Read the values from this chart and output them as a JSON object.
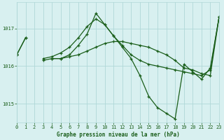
{
  "background_color": "#d8f0f0",
  "grid_color": "#b0d8d8",
  "line_color": "#1a5e1a",
  "marker_color": "#1a5e1a",
  "xlabel": "Graphe pression niveau de la mer (hPa)",
  "xlabel_color": "#1a5e1a",
  "tick_color": "#1a5e1a",
  "ylim": [
    1014.5,
    1017.7
  ],
  "yticks": [
    1015,
    1016,
    1017
  ],
  "xlim": [
    0,
    23
  ],
  "xticks": [
    0,
    1,
    2,
    3,
    4,
    5,
    6,
    7,
    8,
    9,
    10,
    11,
    12,
    13,
    14,
    15,
    16,
    17,
    18,
    19,
    20,
    21,
    22,
    23
  ],
  "series": [
    [
      1016.3,
      1016.75,
      null,
      null,
      null,
      null,
      null,
      null,
      null,
      null,
      null,
      null,
      null,
      null,
      null,
      null,
      null,
      null,
      null,
      null,
      null,
      null,
      null,
      null
    ],
    [
      1016.3,
      null,
      null,
      1016.2,
      1016.25,
      1016.35,
      1016.5,
      1016.75,
      1017.05,
      1017.25,
      1017.1,
      1016.8,
      1016.55,
      1016.3,
      1016.15,
      1016.05,
      1016.0,
      1015.95,
      1015.9,
      1015.85,
      1015.8,
      1015.75,
      1015.9,
      1017.3
    ],
    [
      1016.3,
      1016.75,
      null,
      null,
      1016.2,
      1016.2,
      1016.3,
      1016.55,
      1016.85,
      1017.4,
      1017.1,
      1016.8,
      1016.5,
      1016.2,
      1015.75,
      1015.2,
      1014.9,
      1014.75,
      1014.6,
      1016.05,
      1015.85,
      1015.65,
      1015.95,
      1017.3
    ],
    [
      1016.3,
      null,
      null,
      1016.15,
      1016.2,
      1016.2,
      1016.25,
      1016.3,
      1016.4,
      1016.5,
      1016.6,
      1016.65,
      1016.65,
      1016.6,
      1016.55,
      1016.5,
      1016.4,
      1016.3,
      1016.15,
      1015.95,
      1015.9,
      1015.8,
      1015.75,
      1017.3
    ]
  ]
}
